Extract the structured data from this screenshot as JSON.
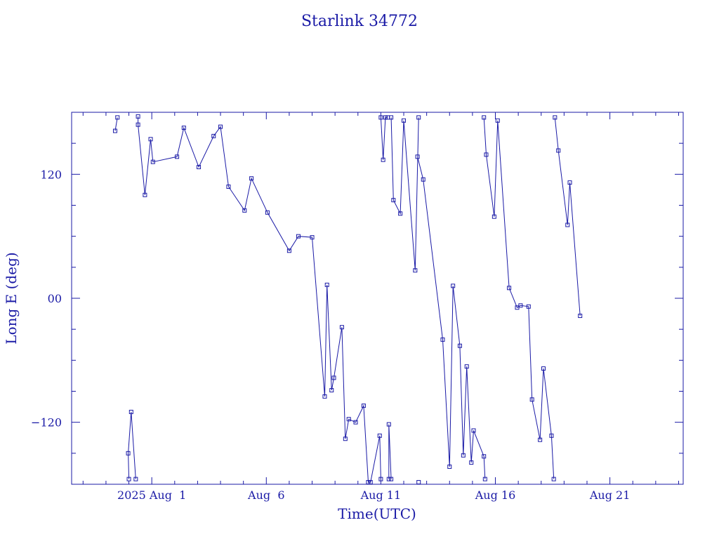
{
  "colors": {
    "ink": "#1a1aa6",
    "background": "#ffffff"
  },
  "chart_data": {
    "type": "line",
    "title": "Starlink 34772",
    "xlabel": "Time(UTC)",
    "ylabel": "Long E (deg)",
    "x_unit": "days",
    "xlim": [
      -3.5,
      23.2
    ],
    "ylim": [
      -180,
      180
    ],
    "x_ticks": [
      {
        "x": 0,
        "label": "2025 Aug  1"
      },
      {
        "x": 5,
        "label": "Aug  6"
      },
      {
        "x": 10,
        "label": "Aug 11"
      },
      {
        "x": 15,
        "label": "Aug 16"
      },
      {
        "x": 20,
        "label": "Aug 21"
      }
    ],
    "y_ticks": [
      {
        "y": 120,
        "label": "120"
      },
      {
        "y": 0,
        "label": "00"
      },
      {
        "y": -120,
        "label": "−120"
      }
    ],
    "grid": false,
    "marker": "square",
    "series": [
      {
        "points": [
          [
            -1.6,
            162
          ],
          [
            -1.5,
            175
          ],
          [
            -1.0,
            -175
          ],
          [
            -1.03,
            -150
          ],
          [
            -0.9,
            -110
          ],
          [
            -0.7,
            -175
          ],
          [
            -0.6,
            176
          ],
          [
            -0.6,
            168
          ],
          [
            -0.3,
            100
          ],
          [
            -0.05,
            154
          ],
          [
            0.05,
            132
          ],
          [
            1.1,
            137
          ],
          [
            1.4,
            165
          ],
          [
            2.05,
            127
          ],
          [
            2.7,
            157
          ],
          [
            3.0,
            166
          ],
          [
            3.35,
            108
          ],
          [
            4.05,
            85
          ],
          [
            4.35,
            116
          ],
          [
            5.05,
            83
          ],
          [
            6.0,
            46
          ],
          [
            6.4,
            60
          ],
          [
            7.0,
            59
          ],
          [
            7.55,
            -95
          ],
          [
            7.65,
            13
          ],
          [
            7.85,
            -89
          ],
          [
            7.95,
            -77
          ],
          [
            8.3,
            -28
          ],
          [
            8.45,
            -136
          ],
          [
            8.6,
            -117
          ],
          [
            8.9,
            -120
          ],
          [
            9.25,
            -104
          ],
          [
            9.45,
            -178
          ],
          [
            9.55,
            -178
          ],
          [
            9.95,
            -133
          ],
          [
            10.0,
            -175
          ],
          [
            10.0,
            175
          ],
          [
            10.1,
            134
          ],
          [
            10.2,
            175
          ],
          [
            10.3,
            175
          ],
          [
            10.35,
            -175
          ],
          [
            10.35,
            -122
          ],
          [
            10.45,
            -175
          ],
          [
            10.45,
            175
          ],
          [
            10.55,
            95
          ],
          [
            10.85,
            82
          ],
          [
            11.0,
            172
          ],
          [
            11.5,
            27
          ],
          [
            11.65,
            175
          ],
          [
            11.65,
            -178
          ],
          [
            11.6,
            137
          ],
          [
            11.85,
            115
          ],
          [
            12.7,
            -40
          ],
          [
            13.0,
            -163
          ],
          [
            13.15,
            12
          ],
          [
            13.45,
            -46
          ],
          [
            13.6,
            -152
          ],
          [
            13.75,
            -66
          ],
          [
            13.95,
            -159
          ],
          [
            14.05,
            -128
          ],
          [
            14.5,
            -153
          ],
          [
            14.55,
            -175
          ],
          [
            14.5,
            175
          ],
          [
            14.6,
            139
          ],
          [
            14.95,
            79
          ],
          [
            15.1,
            172
          ],
          [
            15.6,
            10
          ],
          [
            15.95,
            -9
          ],
          [
            16.1,
            -7
          ],
          [
            16.45,
            -8
          ],
          [
            16.6,
            -98
          ],
          [
            16.95,
            -137
          ],
          [
            17.1,
            -68
          ],
          [
            17.45,
            -133
          ],
          [
            17.55,
            -175
          ],
          [
            17.6,
            175
          ],
          [
            17.75,
            143
          ],
          [
            18.15,
            71
          ],
          [
            18.25,
            112
          ],
          [
            18.7,
            -17
          ]
        ]
      }
    ]
  }
}
